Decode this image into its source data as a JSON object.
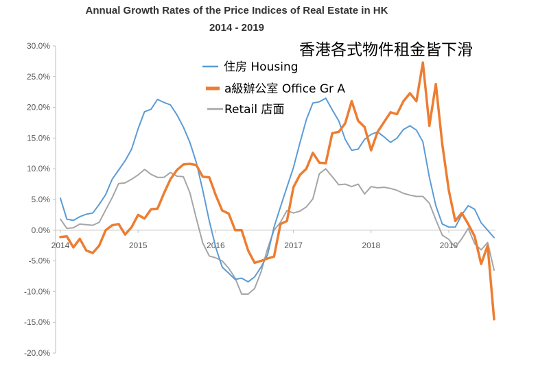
{
  "chart_data": {
    "type": "line",
    "title": "Annual Growth Rates of the Price Indices of Real Estate in HK",
    "subtitle": "2014 - 2019",
    "annotation": "香港各式物件租金皆下滑",
    "xlabel": "",
    "ylabel": "",
    "x_ticks": [
      "2014",
      "2015",
      "2016",
      "2017",
      "2018",
      "2019"
    ],
    "y_ticks": [
      "30.0%",
      "25.0%",
      "20.0%",
      "15.0%",
      "10.0%",
      "5.0%",
      "0.0%",
      "-5.0%",
      "-10.0%",
      "-15.0%",
      "-20.0%"
    ],
    "ylim": [
      -20,
      30
    ],
    "xlim": [
      0,
      67
    ],
    "grid": false,
    "legend_position": "upper-left-inside",
    "series": [
      {
        "name": "Housing",
        "legend_label": "住房 Housing",
        "color": "#5B9BD5",
        "values": [
          5.2,
          1.8,
          1.6,
          2.2,
          2.6,
          2.8,
          4.2,
          5.8,
          8.3,
          9.8,
          11.3,
          13.2,
          16.5,
          19.3,
          19.7,
          21.3,
          20.8,
          20.4,
          18.8,
          16.8,
          14.3,
          11.0,
          6.5,
          1.5,
          -2.8,
          -6.0,
          -7.0,
          -8.0,
          -7.8,
          -8.4,
          -7.6,
          -6.0,
          -4.0,
          0.5,
          3.8,
          7.0,
          10.2,
          14.2,
          18.0,
          20.7,
          20.9,
          21.5,
          19.6,
          17.8,
          14.8,
          13.0,
          13.2,
          14.8,
          15.6,
          16.0,
          15.2,
          14.3,
          15.0,
          16.4,
          17.0,
          16.3,
          14.4,
          8.6,
          4.0,
          1.0,
          0.5,
          0.5,
          2.5,
          4.0,
          3.4,
          1.2,
          0.0,
          -1.2
        ]
      },
      {
        "name": "Office Gr A",
        "legend_label": "a級辦公室 Office Gr A",
        "color": "#ED7D31",
        "values": [
          -1.1,
          -1.0,
          -2.8,
          -1.4,
          -3.3,
          -3.7,
          -2.5,
          0.0,
          0.8,
          1.0,
          -0.7,
          0.5,
          2.5,
          1.9,
          3.4,
          3.5,
          6.0,
          8.3,
          9.8,
          10.7,
          10.8,
          10.6,
          8.7,
          8.6,
          5.7,
          3.2,
          2.7,
          0.0,
          0.0,
          -3.3,
          -5.3,
          -5.0,
          -4.6,
          -4.3,
          1.0,
          1.5,
          7.0,
          9.0,
          10.0,
          12.6,
          11.0,
          10.9,
          15.8,
          16.0,
          17.4,
          21.0,
          17.8,
          16.8,
          13.0,
          16.0,
          17.6,
          19.2,
          18.9,
          21.0,
          22.3,
          21.0,
          27.3,
          17.0,
          23.8,
          14.0,
          6.5,
          1.5,
          2.8,
          1.0,
          -1.0,
          -5.5,
          -2.5,
          -14.5
        ]
      },
      {
        "name": "Retail",
        "legend_label": "Retail 店面",
        "color": "#A5A5A5",
        "values": [
          1.8,
          0.3,
          0.4,
          1.0,
          0.9,
          0.8,
          1.3,
          3.3,
          5.3,
          7.6,
          7.7,
          8.3,
          9.0,
          9.9,
          9.1,
          8.6,
          8.6,
          9.4,
          8.8,
          8.7,
          6.1,
          1.9,
          -2.1,
          -4.2,
          -4.5,
          -5.0,
          -6.2,
          -7.8,
          -10.4,
          -10.4,
          -9.5,
          -6.8,
          -3.0,
          0.0,
          1.3,
          3.2,
          2.8,
          3.1,
          3.8,
          5.1,
          9.2,
          10.0,
          8.7,
          7.4,
          7.5,
          7.1,
          7.5,
          5.9,
          7.1,
          6.9,
          7.0,
          6.8,
          6.5,
          6.0,
          5.7,
          5.5,
          5.5,
          4.4,
          1.7,
          -0.8,
          -1.5,
          -2.8,
          -1.4,
          0.3,
          -2.2,
          -3.2,
          -2.0,
          -6.5
        ]
      }
    ]
  }
}
